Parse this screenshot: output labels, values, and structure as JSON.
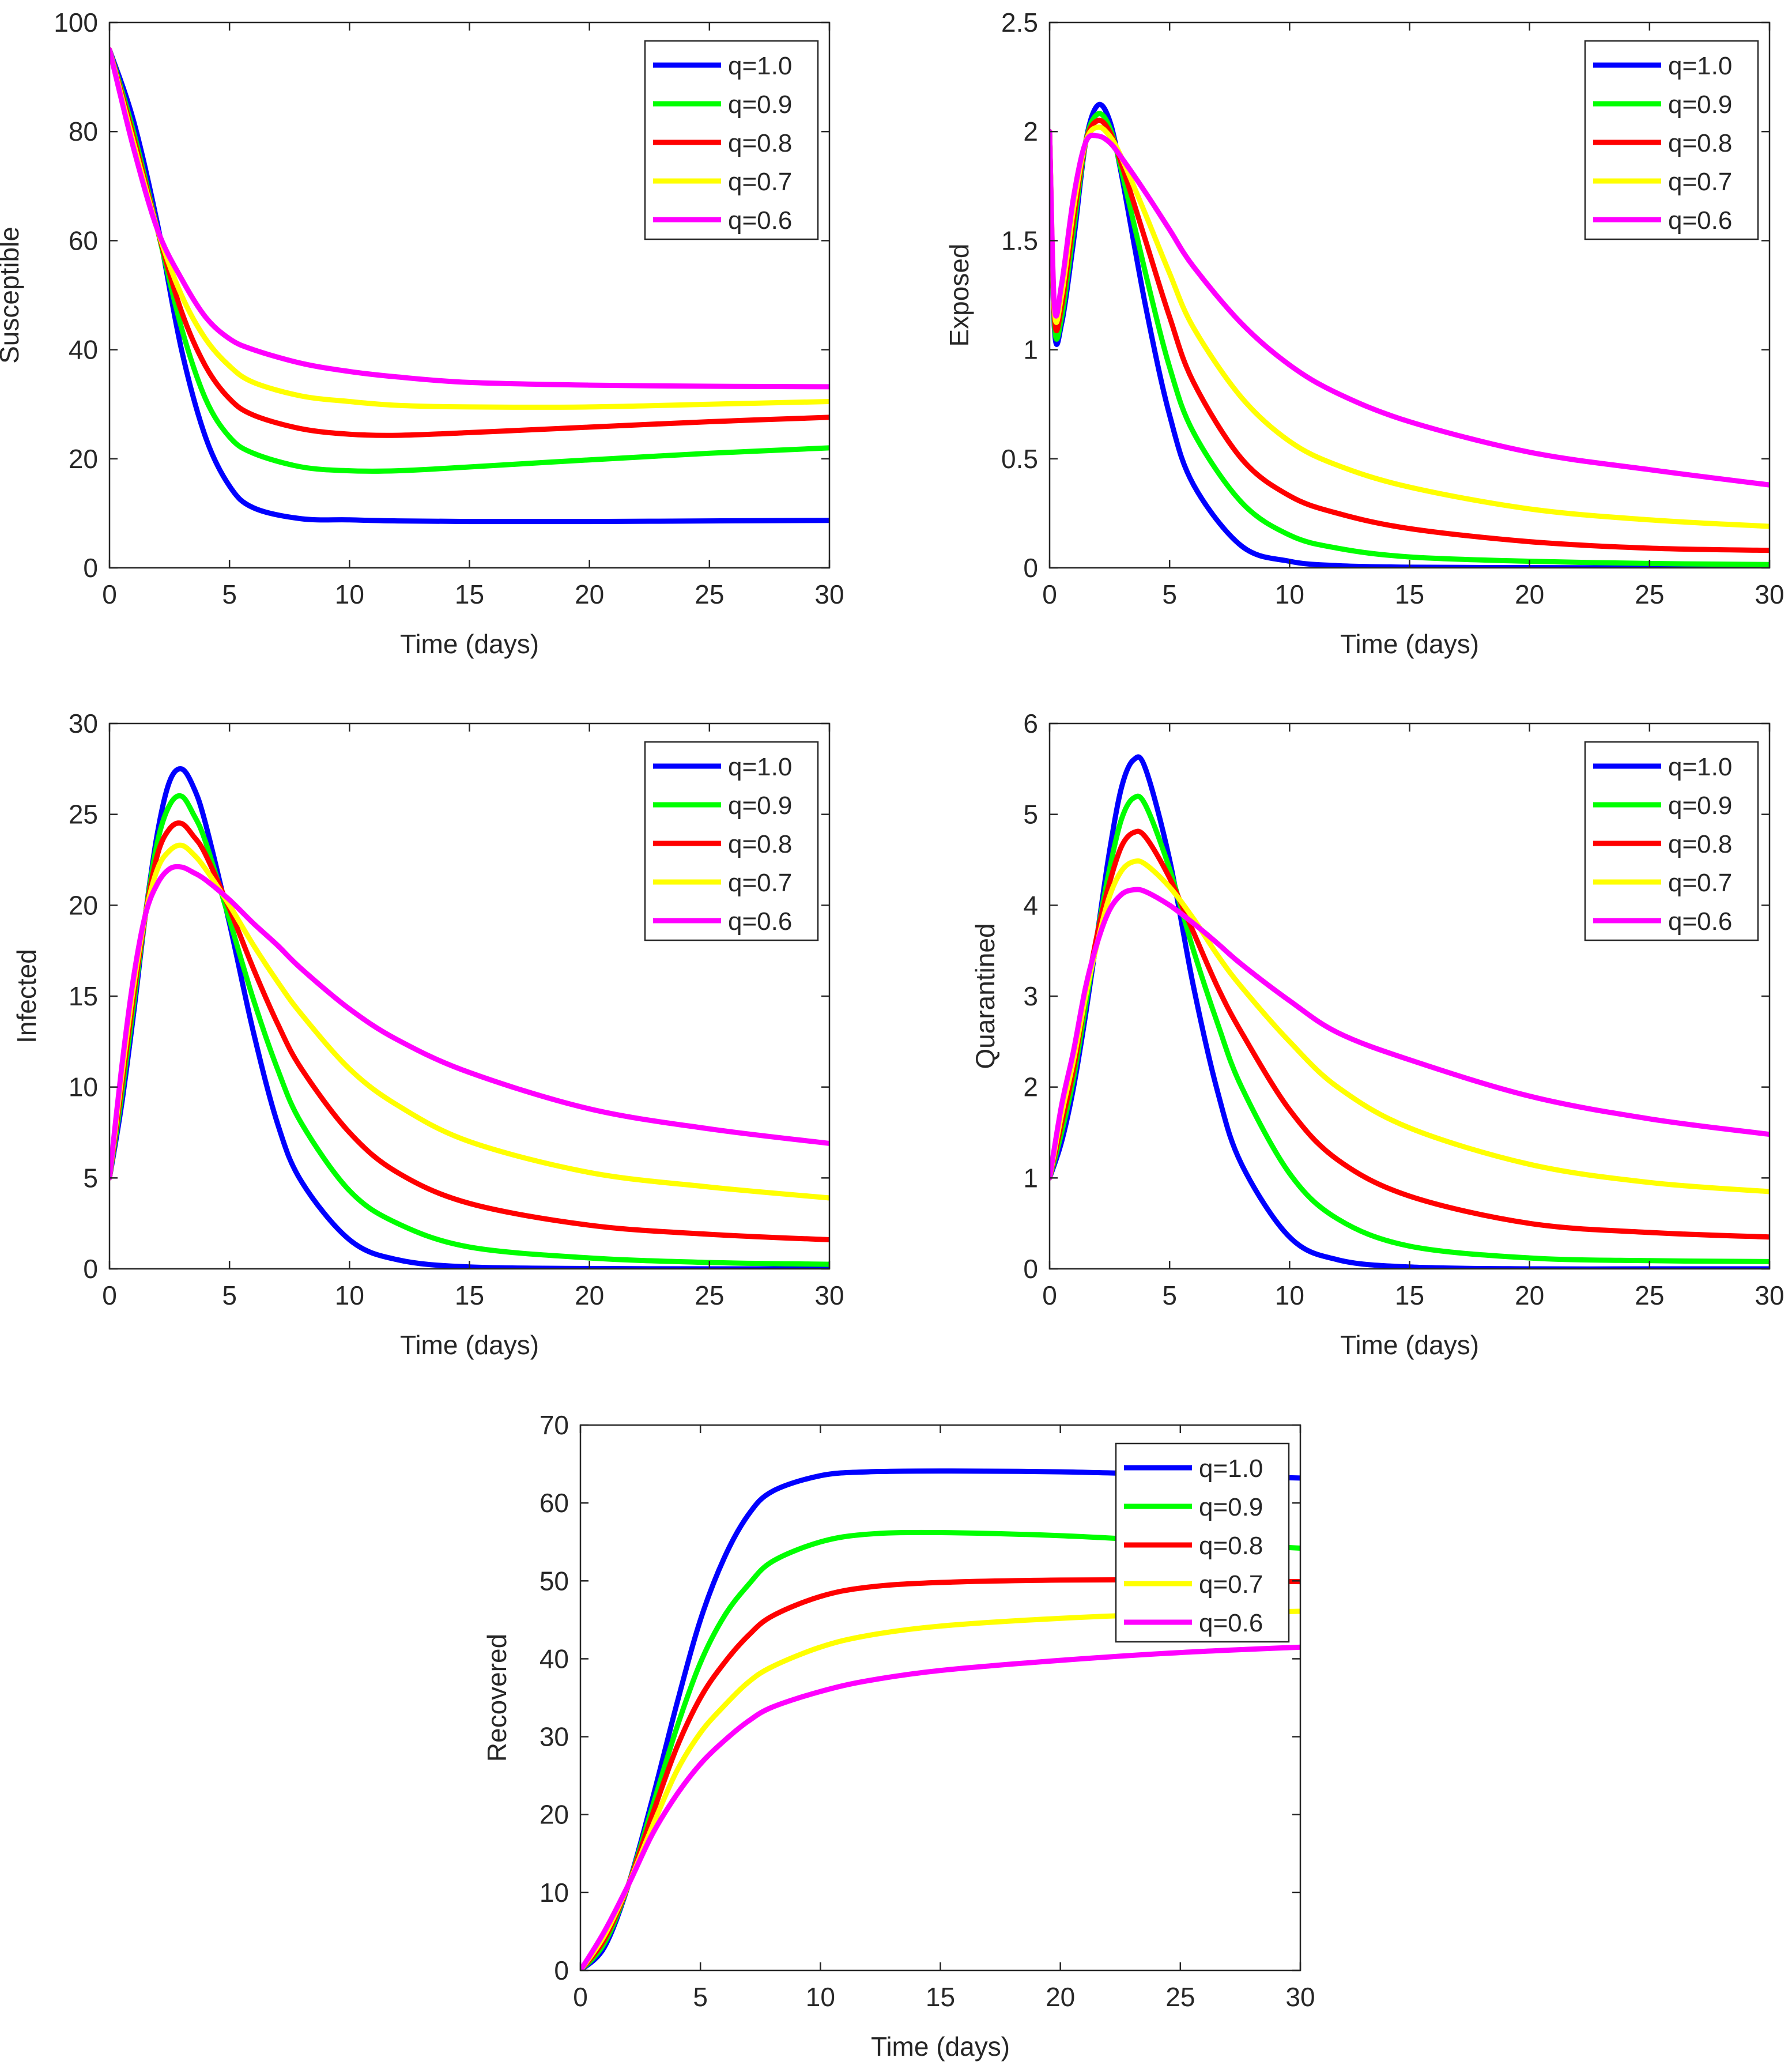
{
  "legend_labels": [
    "q=1.0",
    "q=0.9",
    "q=0.8",
    "q=0.7",
    "q=0.6"
  ],
  "series_colors": [
    "#0000FF",
    "#00FF00",
    "#FF0000",
    "#FFFF00",
    "#FF00FF"
  ],
  "chart_data": [
    {
      "type": "line",
      "title": "",
      "xlabel": "Time (days)",
      "ylabel": "Susceptible",
      "xlim": [
        0,
        30
      ],
      "ylim": [
        0,
        100
      ],
      "xticks": [
        0,
        5,
        10,
        15,
        20,
        25,
        30
      ],
      "yticks": [
        0,
        20,
        40,
        60,
        80,
        100
      ],
      "xtick_labels": [
        "0",
        "5",
        "10",
        "15",
        "20",
        "25",
        "30"
      ],
      "ytick_labels": [
        "0",
        "20",
        "40",
        "60",
        "80",
        "100"
      ],
      "legend_position": "top-right",
      "x": [
        0,
        1,
        2,
        3,
        4,
        5,
        6,
        8,
        10,
        12,
        15,
        20,
        25,
        30
      ],
      "series": [
        {
          "name": "q=1.0",
          "values": [
            95,
            82,
            63,
            40,
            24,
            15,
            11,
            9,
            8.8,
            8.6,
            8.5,
            8.5,
            8.6,
            8.7
          ]
        },
        {
          "name": "q=0.9",
          "values": [
            95,
            80,
            62,
            44,
            31,
            24,
            21,
            18.5,
            17.8,
            17.8,
            18.5,
            19.8,
            21,
            22
          ]
        },
        {
          "name": "q=0.8",
          "values": [
            95,
            79,
            62,
            47,
            37,
            31,
            28,
            25.5,
            24.5,
            24.3,
            24.8,
            25.8,
            26.8,
            27.6
          ]
        },
        {
          "name": "q=0.7",
          "values": [
            95,
            78,
            62,
            50,
            42,
            37,
            34,
            31.5,
            30.5,
            29.8,
            29.5,
            29.5,
            30,
            30.5
          ]
        },
        {
          "name": "q=0.6",
          "values": [
            95,
            77,
            62,
            53,
            46,
            42,
            40,
            37.5,
            36,
            35,
            34,
            33.5,
            33.3,
            33.2
          ]
        }
      ]
    },
    {
      "type": "line",
      "title": "",
      "xlabel": "Time (days)",
      "ylabel": "Exposed",
      "xlim": [
        0,
        30
      ],
      "ylim": [
        0,
        2.5
      ],
      "xticks": [
        0,
        5,
        10,
        15,
        20,
        25,
        30
      ],
      "yticks": [
        0,
        0.5,
        1,
        1.5,
        2,
        2.5
      ],
      "xtick_labels": [
        "0",
        "5",
        "10",
        "15",
        "20",
        "25",
        "30"
      ],
      "ytick_labels": [
        "0",
        "0.5",
        "1",
        "1.5",
        "2",
        "2.5"
      ],
      "legend_position": "top-right",
      "x": [
        0,
        0.2,
        0.5,
        1,
        1.5,
        2,
        2.5,
        3,
        4,
        5,
        6,
        8,
        10,
        12,
        15,
        20,
        25,
        30
      ],
      "series": [
        {
          "name": "q=1.0",
          "values": [
            2.0,
            1.1,
            1.12,
            1.5,
            1.95,
            2.12,
            2.05,
            1.8,
            1.2,
            0.7,
            0.38,
            0.1,
            0.03,
            0.01,
            0.003,
            0.001,
            0.0,
            0.0
          ]
        },
        {
          "name": "q=0.9",
          "values": [
            2.0,
            1.12,
            1.15,
            1.55,
            1.95,
            2.08,
            2.02,
            1.82,
            1.35,
            0.92,
            0.62,
            0.3,
            0.15,
            0.09,
            0.05,
            0.03,
            0.02,
            0.015
          ]
        },
        {
          "name": "q=0.8",
          "values": [
            2.0,
            1.15,
            1.2,
            1.6,
            1.95,
            2.05,
            2.0,
            1.85,
            1.5,
            1.15,
            0.85,
            0.5,
            0.33,
            0.25,
            0.18,
            0.12,
            0.09,
            0.08
          ]
        },
        {
          "name": "q=0.7",
          "values": [
            2.0,
            1.18,
            1.25,
            1.65,
            1.95,
            2.02,
            1.98,
            1.88,
            1.62,
            1.35,
            1.1,
            0.78,
            0.58,
            0.47,
            0.37,
            0.27,
            0.22,
            0.19
          ]
        },
        {
          "name": "q=0.6",
          "values": [
            2.0,
            1.2,
            1.3,
            1.7,
            1.95,
            1.98,
            1.95,
            1.88,
            1.72,
            1.55,
            1.38,
            1.12,
            0.93,
            0.8,
            0.67,
            0.53,
            0.45,
            0.38
          ]
        }
      ]
    },
    {
      "type": "line",
      "title": "",
      "xlabel": "Time (days)",
      "ylabel": "Infected",
      "xlim": [
        0,
        30
      ],
      "ylim": [
        0,
        30
      ],
      "xticks": [
        0,
        5,
        10,
        15,
        20,
        25,
        30
      ],
      "yticks": [
        0,
        5,
        10,
        15,
        20,
        25,
        30
      ],
      "xtick_labels": [
        "0",
        "5",
        "10",
        "15",
        "20",
        "25",
        "30"
      ],
      "ytick_labels": [
        "0",
        "5",
        "10",
        "15",
        "20",
        "25",
        "30"
      ],
      "legend_position": "top-right",
      "x": [
        0,
        0.5,
        1,
        1.5,
        2,
        2.5,
        3,
        3.5,
        4,
        5,
        6,
        7,
        8,
        10,
        12,
        15,
        20,
        25,
        30
      ],
      "series": [
        {
          "name": "q=1.0",
          "values": [
            5,
            9,
            14,
            19.5,
            24,
            26.8,
            27.5,
            26.5,
            24.5,
            19,
            13,
            8,
            4.8,
            1.6,
            0.5,
            0.1,
            0.02,
            0.0,
            0.0
          ]
        },
        {
          "name": "q=0.9",
          "values": [
            5,
            9.5,
            14.5,
            19.5,
            23.5,
            25.5,
            26,
            25,
            23.5,
            19.2,
            14.8,
            11,
            8,
            4.3,
            2.5,
            1.2,
            0.6,
            0.35,
            0.25
          ]
        },
        {
          "name": "q=0.8",
          "values": [
            5,
            10,
            15,
            19.5,
            22.8,
            24.2,
            24.5,
            23.8,
            22.8,
            19.8,
            16.5,
            13.5,
            11,
            7.5,
            5.3,
            3.6,
            2.4,
            1.9,
            1.6
          ]
        },
        {
          "name": "q=0.7",
          "values": [
            5,
            10.5,
            15.5,
            19.5,
            22,
            23,
            23.3,
            22.8,
            22,
            20,
            17.8,
            15.8,
            14,
            11,
            9,
            7,
            5.3,
            4.5,
            3.9
          ]
        },
        {
          "name": "q=0.6",
          "values": [
            5,
            11,
            16,
            19.5,
            21.2,
            22,
            22.1,
            21.8,
            21.4,
            20.3,
            19,
            17.8,
            16.5,
            14.3,
            12.6,
            10.8,
            8.8,
            7.7,
            6.9
          ]
        }
      ]
    },
    {
      "type": "line",
      "title": "",
      "xlabel": "Time (days)",
      "ylabel": "Quarantined",
      "xlim": [
        0,
        30
      ],
      "ylim": [
        0,
        6
      ],
      "xticks": [
        0,
        5,
        10,
        15,
        20,
        25,
        30
      ],
      "yticks": [
        0,
        1,
        2,
        3,
        4,
        5,
        6
      ],
      "xtick_labels": [
        "0",
        "5",
        "10",
        "15",
        "20",
        "25",
        "30"
      ],
      "ytick_labels": [
        "0",
        "1",
        "2",
        "3",
        "4",
        "5",
        "6"
      ],
      "legend_position": "top-right",
      "x": [
        0,
        0.5,
        1,
        1.5,
        2,
        2.5,
        3,
        3.5,
        4,
        5,
        6,
        7,
        8,
        10,
        12,
        15,
        20,
        25,
        30
      ],
      "series": [
        {
          "name": "q=1.0",
          "values": [
            1,
            1.4,
            2,
            2.8,
            3.7,
            4.6,
            5.3,
            5.6,
            5.5,
            4.5,
            3.1,
            1.95,
            1.15,
            0.35,
            0.1,
            0.02,
            0.0,
            0.0,
            0.0
          ]
        },
        {
          "name": "q=0.9",
          "values": [
            1,
            1.5,
            2.1,
            2.9,
            3.7,
            4.4,
            4.95,
            5.18,
            5.1,
            4.4,
            3.5,
            2.7,
            2.0,
            1.05,
            0.55,
            0.25,
            0.12,
            0.09,
            0.08
          ]
        },
        {
          "name": "q=0.8",
          "values": [
            1,
            1.6,
            2.2,
            3.0,
            3.7,
            4.25,
            4.65,
            4.8,
            4.75,
            4.3,
            3.7,
            3.1,
            2.6,
            1.75,
            1.2,
            0.8,
            0.5,
            0.4,
            0.35
          ]
        },
        {
          "name": "q=0.7",
          "values": [
            1,
            1.7,
            2.3,
            3.0,
            3.6,
            4.1,
            4.38,
            4.48,
            4.45,
            4.2,
            3.85,
            3.45,
            3.1,
            2.5,
            2.0,
            1.55,
            1.15,
            0.95,
            0.85
          ]
        },
        {
          "name": "q=0.6",
          "values": [
            1,
            1.8,
            2.4,
            3.1,
            3.6,
            3.95,
            4.12,
            4.17,
            4.15,
            4.0,
            3.8,
            3.58,
            3.35,
            2.95,
            2.6,
            2.3,
            1.9,
            1.65,
            1.48
          ]
        }
      ]
    },
    {
      "type": "line",
      "title": "",
      "xlabel": "Time (days)",
      "ylabel": "Recovered",
      "xlim": [
        0,
        30
      ],
      "ylim": [
        0,
        70
      ],
      "xticks": [
        0,
        5,
        10,
        15,
        20,
        25,
        30
      ],
      "yticks": [
        0,
        10,
        20,
        30,
        40,
        50,
        60,
        70
      ],
      "xtick_labels": [
        "0",
        "5",
        "10",
        "15",
        "20",
        "25",
        "30"
      ],
      "ytick_labels": [
        "0",
        "10",
        "20",
        "30",
        "40",
        "50",
        "60",
        "70"
      ],
      "legend_position": "top-right",
      "x": [
        0,
        1,
        2,
        3,
        4,
        5,
        6,
        7,
        8,
        10,
        12,
        15,
        20,
        25,
        30
      ],
      "series": [
        {
          "name": "q=1.0",
          "values": [
            0,
            3,
            11,
            22,
            34,
            45,
            53,
            58.5,
            61.5,
            63.5,
            64,
            64.1,
            64,
            63.6,
            63.2
          ]
        },
        {
          "name": "q=0.9",
          "values": [
            0,
            3.5,
            11,
            21,
            31,
            39.5,
            45.5,
            49.5,
            52.5,
            55,
            56,
            56.2,
            55.8,
            55,
            54.2
          ]
        },
        {
          "name": "q=0.8",
          "values": [
            0,
            4,
            11,
            20,
            28.5,
            35,
            39.5,
            43,
            45.5,
            48,
            49.2,
            49.8,
            50.1,
            50.1,
            49.9
          ]
        },
        {
          "name": "q=0.7",
          "values": [
            0,
            4.5,
            11,
            18.5,
            25.5,
            30.5,
            34,
            37,
            39,
            41.5,
            43,
            44.2,
            45.2,
            45.8,
            46.1
          ]
        },
        {
          "name": "q=0.6",
          "values": [
            0,
            5,
            11,
            17.5,
            22.5,
            26.5,
            29.5,
            32,
            33.8,
            35.8,
            37.2,
            38.5,
            39.8,
            40.8,
            41.5
          ]
        }
      ]
    }
  ]
}
